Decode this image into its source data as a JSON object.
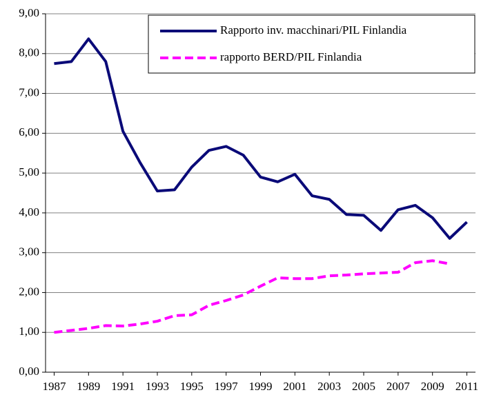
{
  "chart_data": {
    "type": "line",
    "x": [
      1987,
      1988,
      1989,
      1990,
      1991,
      1992,
      1993,
      1994,
      1995,
      1996,
      1997,
      1998,
      1999,
      2000,
      2001,
      2002,
      2003,
      2004,
      2005,
      2006,
      2007,
      2008,
      2009,
      2010,
      2011
    ],
    "series": [
      {
        "name": "Rapporto inv. macchinari/PIL Finlandia",
        "color": "#0a0a78",
        "linestyle": "solid",
        "values": [
          7.75,
          7.8,
          8.37,
          7.8,
          6.05,
          5.26,
          4.55,
          4.58,
          5.15,
          5.57,
          5.67,
          5.45,
          4.9,
          4.78,
          4.97,
          4.43,
          4.34,
          3.96,
          3.94,
          3.56,
          4.08,
          4.19,
          3.88,
          3.36,
          3.77
        ]
      },
      {
        "name": "rapporto BERD/PIL Finlandia",
        "color": "#ff00ff",
        "linestyle": "dashed",
        "values": [
          1.0,
          1.05,
          1.1,
          1.17,
          1.16,
          1.21,
          1.28,
          1.42,
          1.44,
          1.68,
          1.8,
          1.94,
          2.16,
          2.37,
          2.35,
          2.35,
          2.42,
          2.44,
          2.47,
          2.49,
          2.51,
          2.75,
          2.8,
          2.72,
          null
        ]
      }
    ],
    "xlim": [
      1986.5,
      2011.5
    ],
    "xticks": [
      1987,
      1989,
      1991,
      1993,
      1995,
      1997,
      1999,
      2001,
      2003,
      2005,
      2007,
      2009,
      2011
    ],
    "ylim": [
      0,
      9
    ],
    "yticks": [
      {
        "value": 0,
        "label": "0,00"
      },
      {
        "value": 1,
        "label": "1,00"
      },
      {
        "value": 2,
        "label": "2,00"
      },
      {
        "value": 3,
        "label": "3,00"
      },
      {
        "value": 4,
        "label": "4,00"
      },
      {
        "value": 5,
        "label": "5,00"
      },
      {
        "value": 6,
        "label": "6,00"
      },
      {
        "value": 7,
        "label": "7,00"
      },
      {
        "value": 8,
        "label": "8,00"
      },
      {
        "value": 9,
        "label": "9,00"
      }
    ],
    "grid": true,
    "legend": "upper right"
  }
}
